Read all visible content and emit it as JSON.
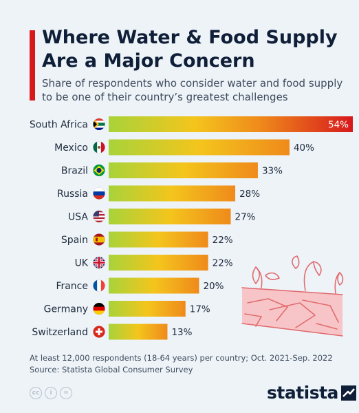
{
  "header": {
    "title": "Where Water & Food Supply Are a Major Concern",
    "subtitle": "Share of respondents who consider water and food supply to be one of their country’s greatest challenges"
  },
  "chart_data": {
    "type": "bar",
    "orientation": "horizontal",
    "categories": [
      "South Africa",
      "Mexico",
      "Brazil",
      "Russia",
      "USA",
      "Spain",
      "UK",
      "France",
      "Germany",
      "Switzerland"
    ],
    "values": [
      54,
      40,
      33,
      28,
      27,
      22,
      22,
      20,
      17,
      13
    ],
    "value_labels": [
      "54%",
      "40%",
      "33%",
      "28%",
      "27%",
      "22%",
      "22%",
      "20%",
      "17%",
      "13%"
    ],
    "unit": "%",
    "xlim": [
      0,
      54
    ],
    "grid": false,
    "legend": "none",
    "colors": {
      "bar_gradient": [
        "#a8d33a",
        "#f4c51c",
        "#ef8a1b"
      ],
      "highlight_gradient": [
        "#a8d33a",
        "#f4c51c",
        "#ef8a1b",
        "#d7191c"
      ],
      "highlight_label": "#ffffff",
      "label_text": "#1d2a3a"
    }
  },
  "flags": [
    "south-africa-flag-icon",
    "mexico-flag-icon",
    "brazil-flag-icon",
    "russia-flag-icon",
    "usa-flag-icon",
    "spain-flag-icon",
    "uk-flag-icon",
    "france-flag-icon",
    "germany-flag-icon",
    "switzerland-flag-icon"
  ],
  "illustration": "drought-cracked-soil-icon",
  "footer": {
    "note": "At least 12,000 respondents (18-64 years) per country; Oct. 2021-Sep. 2022",
    "source": "Source: Statista Global Consumer Survey",
    "license_icons": [
      "cc",
      "i",
      "="
    ],
    "brand": "statista"
  },
  "theme": {
    "accent": "#d7191c",
    "title_color": "#0f1f38",
    "background": "#eef3f8"
  }
}
